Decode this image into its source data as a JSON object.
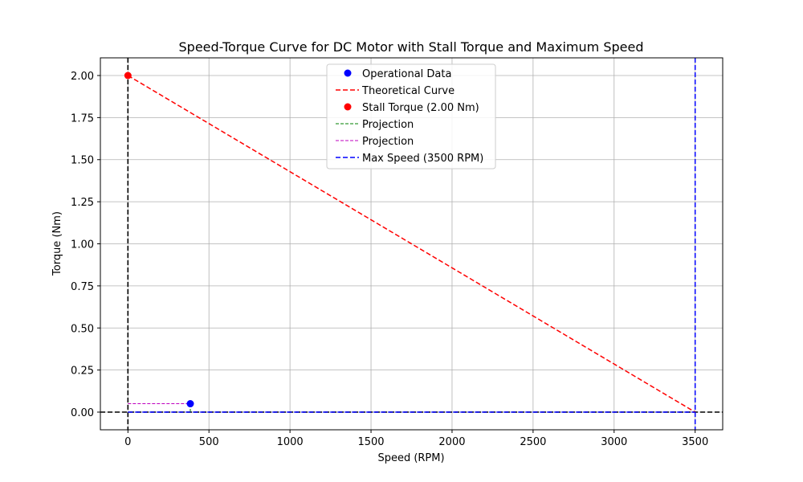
{
  "chart_data": {
    "type": "line",
    "title": "Speed-Torque Curve for DC Motor with Stall Torque and Maximum Speed",
    "xlabel": "Speed (RPM)",
    "ylabel": "Torque (Nm)",
    "xlim": [
      -170,
      3670
    ],
    "ylim": [
      -0.105,
      2.105
    ],
    "xticks": [
      0,
      500,
      1000,
      1500,
      2000,
      2500,
      3000,
      3500
    ],
    "xtick_labels": [
      "0",
      "500",
      "1000",
      "1500",
      "2000",
      "2500",
      "3000",
      "3500"
    ],
    "yticks": [
      0.0,
      0.25,
      0.5,
      0.75,
      1.0,
      1.25,
      1.5,
      1.75,
      2.0
    ],
    "ytick_labels": [
      "0.00",
      "0.25",
      "0.50",
      "0.75",
      "1.00",
      "1.25",
      "1.50",
      "1.75",
      "2.00"
    ],
    "grid": true,
    "legend_position": "top-center",
    "series": [
      {
        "name": "Operational Data",
        "kind": "scatter",
        "color": "#0000ff",
        "x": [
          385
        ],
        "y": [
          0.05
        ]
      },
      {
        "name": "Theoretical Curve",
        "kind": "line",
        "style": "dashed",
        "color": "#ff0000",
        "x": [
          0,
          3500
        ],
        "y": [
          2.0,
          0.0
        ]
      },
      {
        "name": "Stall Torque (2.00 Nm)",
        "kind": "scatter",
        "color": "#ff0000",
        "x": [
          0
        ],
        "y": [
          2.0
        ]
      },
      {
        "name": "Projection",
        "kind": "line",
        "style": "dashed-thin",
        "color": "#008000",
        "x": [
          385,
          385
        ],
        "y": [
          0.0,
          0.05
        ]
      },
      {
        "name": "Projection",
        "kind": "line",
        "style": "dashed-thin",
        "color": "#bf00bf",
        "x": [
          0,
          385
        ],
        "y": [
          0.05,
          0.05
        ]
      },
      {
        "name": "Max Speed (3500 RPM)",
        "kind": "vline",
        "style": "dashed",
        "color": "#0000ff",
        "x": [
          3500,
          3500
        ],
        "y": [
          0.0,
          0.0
        ]
      }
    ],
    "reference_lines": [
      {
        "orientation": "horizontal",
        "value": 0.0,
        "color": "#000000"
      },
      {
        "orientation": "vertical",
        "value": 0,
        "color": "#000000"
      }
    ]
  }
}
